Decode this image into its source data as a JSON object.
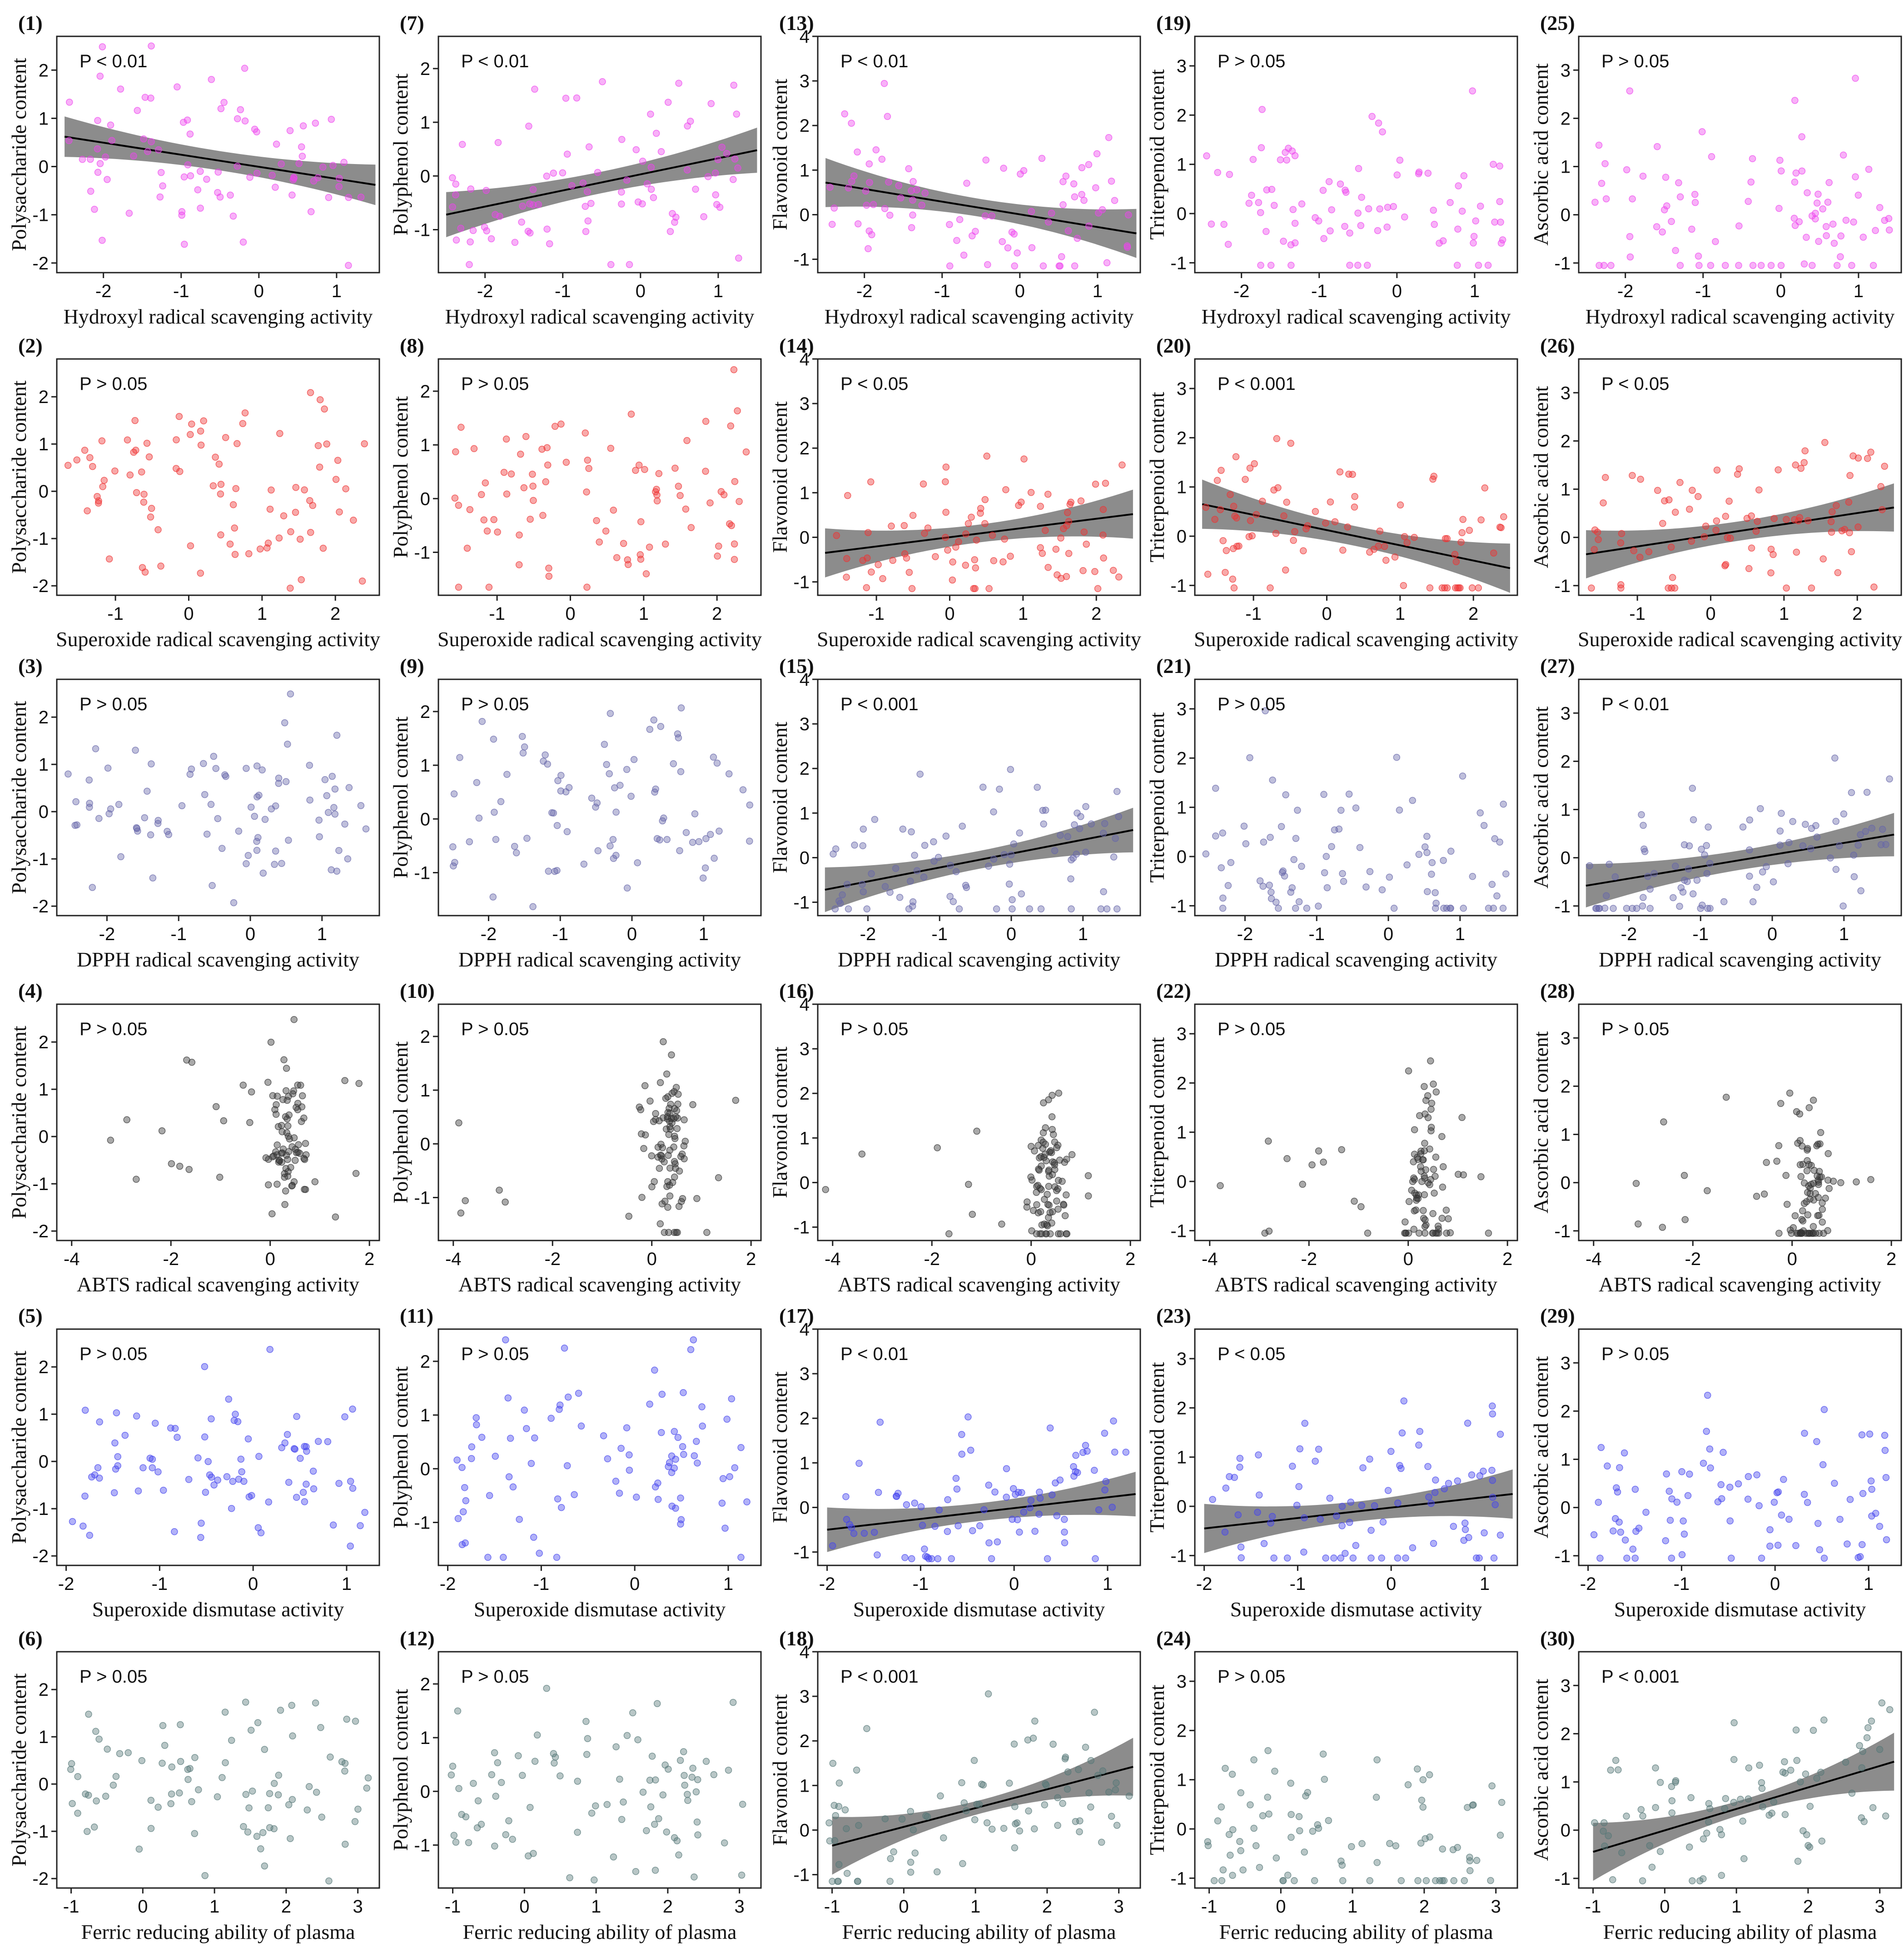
{
  "figure": {
    "x_names": [
      "Hydroxyl radical scavenging activity",
      "Superoxide radical scavenging activity",
      "DPPH radical scavenging activity",
      "ABTS radical scavenging activity",
      "Superoxide dismutase activity",
      "Ferric reducing ability of plasma"
    ],
    "y_names": [
      "Polysaccharide content",
      "Polyphenol content",
      "Flavonoid content",
      "Triterpenoid content",
      "Ascorbic acid content"
    ],
    "row_colors": [
      "#ee44ee",
      "#ee3333",
      "#6666aa",
      "#333333",
      "#4444ee",
      "#557777"
    ],
    "line_color": "#000000",
    "band_color": "#8c8c8c"
  },
  "chart_data": [
    {
      "type": "scatter",
      "id": 1,
      "label": "(1)",
      "p_text": "P < 0.01",
      "xlabel": "Hydroxyl radical scavenging activity",
      "ylabel": "Polysaccharide content",
      "xlim": [
        -2.6,
        1.55
      ],
      "ylim": [
        -2.2,
        2.7
      ],
      "xticks": [
        -2,
        -1,
        0,
        1
      ],
      "yticks": [
        -2,
        -1,
        0,
        1,
        2
      ],
      "fit": {
        "x0": -2.5,
        "y0": 0.62,
        "x1": 1.5,
        "y1": -0.38,
        "band": 0.42,
        "bandmid": 0.2
      },
      "n": 90,
      "seed": 101
    },
    {
      "type": "scatter",
      "id": 2,
      "label": "(2)",
      "p_text": "P > 0.05",
      "xlabel": "Superoxide radical scavenging activity",
      "ylabel": "Polysaccharide content",
      "xlim": [
        -1.8,
        2.6
      ],
      "ylim": [
        -2.2,
        2.8
      ],
      "xticks": [
        -1,
        0,
        1,
        2
      ],
      "yticks": [
        -2,
        -1,
        0,
        1,
        2
      ],
      "n": 90,
      "seed": 102
    },
    {
      "type": "scatter",
      "id": 3,
      "label": "(3)",
      "p_text": "P > 0.05",
      "xlabel": "DPPH radical scavenging activity",
      "ylabel": "Polysaccharide content",
      "xlim": [
        -2.7,
        1.8
      ],
      "ylim": [
        -2.2,
        2.8
      ],
      "xticks": [
        -2,
        -1,
        0,
        1
      ],
      "yticks": [
        -2,
        -1,
        0,
        1,
        2
      ],
      "n": 90,
      "seed": 103
    },
    {
      "type": "scatter",
      "id": 4,
      "label": "(4)",
      "p_text": "P > 0.05",
      "xlabel": "ABTS radical scavenging activity",
      "ylabel": "Polysaccharide content",
      "xlim": [
        -4.3,
        2.2
      ],
      "ylim": [
        -2.2,
        2.8
      ],
      "xticks": [
        -4,
        -2,
        0,
        2
      ],
      "yticks": [
        -2,
        -1,
        0,
        1,
        2
      ],
      "n": 100,
      "seed": 104,
      "cluster": 0.35
    },
    {
      "type": "scatter",
      "id": 5,
      "label": "(5)",
      "p_text": "P > 0.05",
      "xlabel": "Superoxide dismutase activity",
      "ylabel": "Polysaccharide content",
      "xlim": [
        -2.1,
        1.35
      ],
      "ylim": [
        -2.2,
        2.8
      ],
      "xticks": [
        -2,
        -1,
        0,
        1
      ],
      "yticks": [
        -2,
        -1,
        0,
        1,
        2
      ],
      "n": 90,
      "seed": 105
    },
    {
      "type": "scatter",
      "id": 6,
      "label": "(6)",
      "p_text": "P > 0.05",
      "xlabel": "Ferric reducing ability of plasma",
      "ylabel": "Polysaccharide content",
      "xlim": [
        -1.2,
        3.3
      ],
      "ylim": [
        -2.2,
        2.8
      ],
      "xticks": [
        -1,
        0,
        1,
        2,
        3
      ],
      "yticks": [
        -2,
        -1,
        0,
        1,
        2
      ],
      "n": 90,
      "seed": 106
    },
    {
      "type": "scatter",
      "id": 7,
      "label": "(7)",
      "p_text": "P < 0.01",
      "xlabel": "Hydroxyl radical scavenging activity",
      "ylabel": "Polyphenol content",
      "xlim": [
        -2.6,
        1.55
      ],
      "ylim": [
        -1.8,
        2.6
      ],
      "xticks": [
        -2,
        -1,
        0,
        1
      ],
      "yticks": [
        -1,
        0,
        1,
        2
      ],
      "fit": {
        "x0": -2.5,
        "y0": -0.72,
        "x1": 1.5,
        "y1": 0.48,
        "band": 0.42,
        "bandmid": 0.2
      },
      "n": 90,
      "seed": 107
    },
    {
      "type": "scatter",
      "id": 8,
      "label": "(8)",
      "p_text": "P > 0.05",
      "xlabel": "Superoxide radical scavenging activity",
      "ylabel": "Polyphenol content",
      "xlim": [
        -1.8,
        2.6
      ],
      "ylim": [
        -1.8,
        2.6
      ],
      "xticks": [
        -1,
        0,
        1,
        2
      ],
      "yticks": [
        -1,
        0,
        1,
        2
      ],
      "n": 90,
      "seed": 108
    },
    {
      "type": "scatter",
      "id": 9,
      "label": "(9)",
      "p_text": "P > 0.05",
      "xlabel": "DPPH radical scavenging activity",
      "ylabel": "Polyphenol content",
      "xlim": [
        -2.7,
        1.8
      ],
      "ylim": [
        -1.8,
        2.6
      ],
      "xticks": [
        -2,
        -1,
        0,
        1
      ],
      "yticks": [
        -1,
        0,
        1,
        2
      ],
      "n": 90,
      "seed": 109
    },
    {
      "type": "scatter",
      "id": 10,
      "label": "(10)",
      "p_text": "P > 0.05",
      "xlabel": "ABTS radical scavenging activity",
      "ylabel": "Polyphenol content",
      "xlim": [
        -4.3,
        2.2
      ],
      "ylim": [
        -1.8,
        2.6
      ],
      "xticks": [
        -4,
        -2,
        0,
        2
      ],
      "yticks": [
        -1,
        0,
        1,
        2
      ],
      "n": 100,
      "seed": 110,
      "cluster": 0.35
    },
    {
      "type": "scatter",
      "id": 11,
      "label": "(11)",
      "p_text": "P > 0.05",
      "xlabel": "Superoxide dismutase activity",
      "ylabel": "Polyphenol content",
      "xlim": [
        -2.1,
        1.35
      ],
      "ylim": [
        -1.8,
        2.6
      ],
      "xticks": [
        -2,
        -1,
        0,
        1
      ],
      "yticks": [
        -1,
        0,
        1,
        2
      ],
      "n": 90,
      "seed": 111
    },
    {
      "type": "scatter",
      "id": 12,
      "label": "(12)",
      "p_text": "P > 0.05",
      "xlabel": "Ferric reducing ability of plasma",
      "ylabel": "Polyphenol content",
      "xlim": [
        -1.2,
        3.3
      ],
      "ylim": [
        -1.8,
        2.6
      ],
      "xticks": [
        -1,
        0,
        1,
        2,
        3
      ],
      "yticks": [
        -1,
        0,
        1,
        2
      ],
      "n": 90,
      "seed": 112
    },
    {
      "type": "scatter",
      "id": 13,
      "label": "(13)",
      "p_text": "P < 0.01",
      "xlabel": "Hydroxyl radical scavenging activity",
      "ylabel": "Flavonoid content",
      "xlim": [
        -2.6,
        1.55
      ],
      "ylim": [
        -1.3,
        4.0
      ],
      "xticks": [
        -2,
        -1,
        0,
        1
      ],
      "yticks": [
        -1,
        0,
        1,
        2,
        3,
        4
      ],
      "fit": {
        "x0": -2.5,
        "y0": 0.72,
        "x1": 1.5,
        "y1": -0.42,
        "band": 0.55,
        "bandmid": 0.2
      },
      "n": 90,
      "seed": 113
    },
    {
      "type": "scatter",
      "id": 14,
      "label": "(14)",
      "p_text": "P < 0.05",
      "xlabel": "Superoxide radical scavenging activity",
      "ylabel": "Flavonoid content",
      "xlim": [
        -1.8,
        2.6
      ],
      "ylim": [
        -1.3,
        4.0
      ],
      "xticks": [
        -1,
        0,
        1,
        2
      ],
      "yticks": [
        -1,
        0,
        1,
        2,
        3,
        4
      ],
      "fit": {
        "x0": -1.7,
        "y0": -0.35,
        "x1": 2.5,
        "y1": 0.52,
        "band": 0.55,
        "bandmid": 0.2
      },
      "n": 90,
      "seed": 114
    },
    {
      "type": "scatter",
      "id": 15,
      "label": "(15)",
      "p_text": "P < 0.001",
      "xlabel": "DPPH radical scavenging activity",
      "ylabel": "Flavonoid content",
      "xlim": [
        -2.7,
        1.8
      ],
      "ylim": [
        -1.3,
        4.0
      ],
      "xticks": [
        -2,
        -1,
        0,
        1
      ],
      "yticks": [
        -1,
        0,
        1,
        2,
        3,
        4
      ],
      "fit": {
        "x0": -2.6,
        "y0": -0.72,
        "x1": 1.7,
        "y1": 0.62,
        "band": 0.5,
        "bandmid": 0.2
      },
      "n": 90,
      "seed": 115
    },
    {
      "type": "scatter",
      "id": 16,
      "label": "(16)",
      "p_text": "P > 0.05",
      "xlabel": "ABTS radical scavenging activity",
      "ylabel": "Flavonoid content",
      "xlim": [
        -4.3,
        2.2
      ],
      "ylim": [
        -1.3,
        4.0
      ],
      "xticks": [
        -4,
        -2,
        0,
        2
      ],
      "yticks": [
        -1,
        0,
        1,
        2,
        3,
        4
      ],
      "n": 100,
      "seed": 116,
      "cluster": 0.35
    },
    {
      "type": "scatter",
      "id": 17,
      "label": "(17)",
      "p_text": "P < 0.01",
      "xlabel": "Superoxide dismutase activity",
      "ylabel": "Flavonoid content",
      "xlim": [
        -2.1,
        1.35
      ],
      "ylim": [
        -1.3,
        4.0
      ],
      "xticks": [
        -2,
        -1,
        0,
        1
      ],
      "yticks": [
        -1,
        0,
        1,
        2,
        3,
        4
      ],
      "fit": {
        "x0": -2.0,
        "y0": -0.5,
        "x1": 1.3,
        "y1": 0.3,
        "band": 0.5,
        "bandmid": 0.2
      },
      "n": 90,
      "seed": 117
    },
    {
      "type": "scatter",
      "id": 18,
      "label": "(18)",
      "p_text": "P < 0.001",
      "xlabel": "Ferric reducing ability of plasma",
      "ylabel": "Flavonoid content",
      "xlim": [
        -1.2,
        3.3
      ],
      "ylim": [
        -1.3,
        4.0
      ],
      "xticks": [
        -1,
        0,
        1,
        2,
        3
      ],
      "yticks": [
        -1,
        0,
        1,
        2,
        3,
        4
      ],
      "fit": {
        "x0": -1.0,
        "y0": -0.35,
        "x1": 3.2,
        "y1": 1.42,
        "band": 0.65,
        "bandmid": 0.15
      },
      "n": 90,
      "seed": 118
    },
    {
      "type": "scatter",
      "id": 19,
      "label": "(19)",
      "p_text": "P > 0.05",
      "xlabel": "Hydroxyl radical scavenging activity",
      "ylabel": "Triterpenoid content",
      "xlim": [
        -2.6,
        1.55
      ],
      "ylim": [
        -1.2,
        3.6
      ],
      "xticks": [
        -2,
        -1,
        0,
        1
      ],
      "yticks": [
        -1,
        0,
        1,
        2,
        3
      ],
      "n": 90,
      "seed": 119
    },
    {
      "type": "scatter",
      "id": 20,
      "label": "(20)",
      "p_text": "P < 0.001",
      "xlabel": "Superoxide radical scavenging activity",
      "ylabel": "Triterpenoid content",
      "xlim": [
        -1.8,
        2.6
      ],
      "ylim": [
        -1.2,
        3.6
      ],
      "xticks": [
        -1,
        0,
        1,
        2
      ],
      "yticks": [
        -1,
        0,
        1,
        2,
        3
      ],
      "fit": {
        "x0": -1.7,
        "y0": 0.65,
        "x1": 2.5,
        "y1": -0.65,
        "band": 0.5,
        "bandmid": 0.2
      },
      "n": 90,
      "seed": 120
    },
    {
      "type": "scatter",
      "id": 21,
      "label": "(21)",
      "p_text": "P > 0.05",
      "xlabel": "DPPH radical scavenging activity",
      "ylabel": "Triterpenoid content",
      "xlim": [
        -2.7,
        1.8
      ],
      "ylim": [
        -1.2,
        3.6
      ],
      "xticks": [
        -2,
        -1,
        0,
        1
      ],
      "yticks": [
        -1,
        0,
        1,
        2,
        3
      ],
      "n": 90,
      "seed": 121
    },
    {
      "type": "scatter",
      "id": 22,
      "label": "(22)",
      "p_text": "P > 0.05",
      "xlabel": "ABTS radical scavenging activity",
      "ylabel": "Triterpenoid content",
      "xlim": [
        -4.3,
        2.2
      ],
      "ylim": [
        -1.2,
        3.6
      ],
      "xticks": [
        -4,
        -2,
        0,
        2
      ],
      "yticks": [
        -1,
        0,
        1,
        2,
        3
      ],
      "n": 100,
      "seed": 122,
      "cluster": 0.35
    },
    {
      "type": "scatter",
      "id": 23,
      "label": "(23)",
      "p_text": "P < 0.05",
      "xlabel": "Superoxide dismutase activity",
      "ylabel": "Triterpenoid content",
      "xlim": [
        -2.1,
        1.35
      ],
      "ylim": [
        -1.2,
        3.6
      ],
      "xticks": [
        -2,
        -1,
        0,
        1
      ],
      "yticks": [
        -1,
        0,
        1,
        2,
        3
      ],
      "fit": {
        "x0": -2.0,
        "y0": -0.45,
        "x1": 1.3,
        "y1": 0.25,
        "band": 0.5,
        "bandmid": 0.2
      },
      "n": 90,
      "seed": 123
    },
    {
      "type": "scatter",
      "id": 24,
      "label": "(24)",
      "p_text": "P > 0.05",
      "xlabel": "Ferric reducing ability of plasma",
      "ylabel": "Triterpenoid content",
      "xlim": [
        -1.2,
        3.3
      ],
      "ylim": [
        -1.2,
        3.6
      ],
      "xticks": [
        -1,
        0,
        1,
        2,
        3
      ],
      "yticks": [
        -1,
        0,
        1,
        2,
        3
      ],
      "n": 90,
      "seed": 124
    },
    {
      "type": "scatter",
      "id": 25,
      "label": "(25)",
      "p_text": "P > 0.05",
      "xlabel": "Hydroxyl radical scavenging activity",
      "ylabel": "Ascorbic acid content",
      "xlim": [
        -2.6,
        1.55
      ],
      "ylim": [
        -1.2,
        3.7
      ],
      "xticks": [
        -2,
        -1,
        0,
        1
      ],
      "yticks": [
        -1,
        0,
        1,
        2,
        3
      ],
      "n": 90,
      "seed": 125
    },
    {
      "type": "scatter",
      "id": 26,
      "label": "(26)",
      "p_text": "P < 0.05",
      "xlabel": "Superoxide radical scavenging activity",
      "ylabel": "Ascorbic acid content",
      "xlim": [
        -1.8,
        2.6
      ],
      "ylim": [
        -1.2,
        3.7
      ],
      "xticks": [
        -1,
        0,
        1,
        2
      ],
      "yticks": [
        -1,
        0,
        1,
        2,
        3
      ],
      "fit": {
        "x0": -1.7,
        "y0": -0.35,
        "x1": 2.5,
        "y1": 0.62,
        "band": 0.5,
        "bandmid": 0.2
      },
      "n": 90,
      "seed": 126
    },
    {
      "type": "scatter",
      "id": 27,
      "label": "(27)",
      "p_text": "P < 0.01",
      "xlabel": "DPPH radical scavenging activity",
      "ylabel": "Ascorbic acid content",
      "xlim": [
        -2.7,
        1.8
      ],
      "ylim": [
        -1.2,
        3.7
      ],
      "xticks": [
        -2,
        -1,
        0,
        1
      ],
      "yticks": [
        -1,
        0,
        1,
        2,
        3
      ],
      "fit": {
        "x0": -2.6,
        "y0": -0.58,
        "x1": 1.7,
        "y1": 0.48,
        "band": 0.45,
        "bandmid": 0.2
      },
      "n": 90,
      "seed": 127
    },
    {
      "type": "scatter",
      "id": 28,
      "label": "(28)",
      "p_text": "P > 0.05",
      "xlabel": "ABTS radical scavenging activity",
      "ylabel": "Ascorbic acid content",
      "xlim": [
        -4.3,
        2.2
      ],
      "ylim": [
        -1.2,
        3.7
      ],
      "xticks": [
        -4,
        -2,
        0,
        2
      ],
      "yticks": [
        -1,
        0,
        1,
        2,
        3
      ],
      "n": 100,
      "seed": 128,
      "cluster": 0.35
    },
    {
      "type": "scatter",
      "id": 29,
      "label": "(29)",
      "p_text": "P > 0.05",
      "xlabel": "Superoxide dismutase activity",
      "ylabel": "Ascorbic acid content",
      "xlim": [
        -2.1,
        1.35
      ],
      "ylim": [
        -1.2,
        3.7
      ],
      "xticks": [
        -2,
        -1,
        0,
        1
      ],
      "yticks": [
        -1,
        0,
        1,
        2,
        3
      ],
      "n": 90,
      "seed": 129
    },
    {
      "type": "scatter",
      "id": 30,
      "label": "(30)",
      "p_text": "P < 0.001",
      "xlabel": "Ferric reducing ability of plasma",
      "ylabel": "Ascorbic acid content",
      "xlim": [
        -1.2,
        3.3
      ],
      "ylim": [
        -1.2,
        3.7
      ],
      "xticks": [
        -1,
        0,
        1,
        2,
        3
      ],
      "yticks": [
        -1,
        0,
        1,
        2,
        3
      ],
      "fit": {
        "x0": -1.0,
        "y0": -0.45,
        "x1": 3.2,
        "y1": 1.42,
        "band": 0.6,
        "bandmid": 0.15
      },
      "n": 90,
      "seed": 130
    }
  ]
}
